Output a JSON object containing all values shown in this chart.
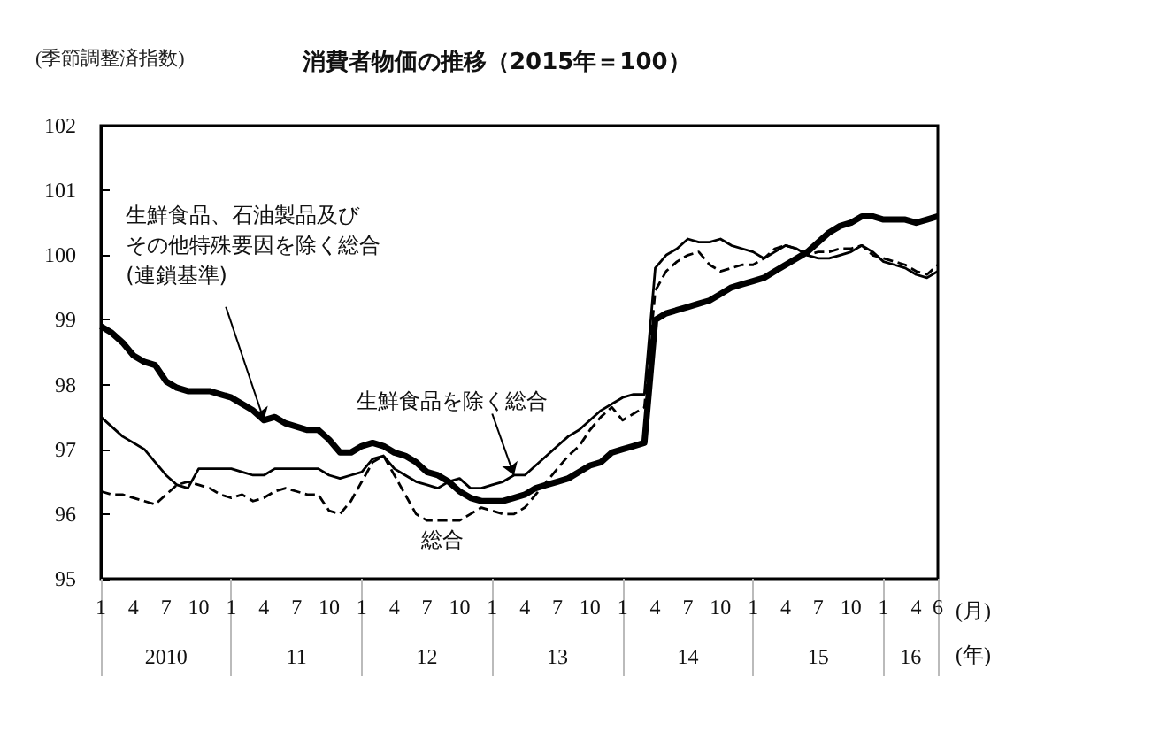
{
  "chart_data": {
    "type": "line",
    "title": "消費者物価の推移（2015年＝100）",
    "ylabel": "(季節調整済指数)",
    "xlabel": "(月)",
    "x": [
      "2010-01",
      "2010-02",
      "2010-03",
      "2010-04",
      "2010-05",
      "2010-06",
      "2010-07",
      "2010-08",
      "2010-09",
      "2010-10",
      "2010-11",
      "2010-12",
      "2011-01",
      "2011-02",
      "2011-03",
      "2011-04",
      "2011-05",
      "2011-06",
      "2011-07",
      "2011-08",
      "2011-09",
      "2011-10",
      "2011-11",
      "2011-12",
      "2012-01",
      "2012-02",
      "2012-03",
      "2012-04",
      "2012-05",
      "2012-06",
      "2012-07",
      "2012-08",
      "2012-09",
      "2012-10",
      "2012-11",
      "2012-12",
      "2013-01",
      "2013-02",
      "2013-03",
      "2013-04",
      "2013-05",
      "2013-06",
      "2013-07",
      "2013-08",
      "2013-09",
      "2013-10",
      "2013-11",
      "2013-12",
      "2014-01",
      "2014-02",
      "2014-03",
      "2014-04",
      "2014-05",
      "2014-06",
      "2014-07",
      "2014-08",
      "2014-09",
      "2014-10",
      "2014-11",
      "2014-12",
      "2015-01",
      "2015-02",
      "2015-03",
      "2015-04",
      "2015-05",
      "2015-06",
      "2015-07",
      "2015-08",
      "2015-09",
      "2015-10",
      "2015-11",
      "2015-12",
      "2016-01",
      "2016-02",
      "2016-03",
      "2016-04",
      "2016-05",
      "2016-06"
    ],
    "series": [
      {
        "name": "生鮮食品、石油製品及びその他特殊要因を除く総合(連鎖基準)",
        "color": "#000000",
        "line_style": "solid",
        "values": [
          98.9,
          98.8,
          98.65,
          98.45,
          98.35,
          98.3,
          98.05,
          97.95,
          97.9,
          97.9,
          97.9,
          97.85,
          97.8,
          97.7,
          97.6,
          97.45,
          97.5,
          97.4,
          97.35,
          97.3,
          97.3,
          97.15,
          96.95,
          96.95,
          97.05,
          97.1,
          97.05,
          96.95,
          96.9,
          96.8,
          96.65,
          96.6,
          96.5,
          96.35,
          96.25,
          96.2,
          96.2,
          96.2,
          96.25,
          96.3,
          96.4,
          96.45,
          96.5,
          96.55,
          96.65,
          96.75,
          96.8,
          96.95,
          97.0,
          97.05,
          97.1,
          99.0,
          99.1,
          99.15,
          99.2,
          99.25,
          99.3,
          99.4,
          99.5,
          99.55,
          99.6,
          99.65,
          99.75,
          99.85,
          99.95,
          100.05,
          100.2,
          100.35,
          100.45,
          100.5,
          100.6,
          100.6,
          100.55,
          100.55,
          100.55,
          100.5,
          100.55,
          100.6
        ]
      },
      {
        "name": "生鮮食品を除く総合",
        "color": "#000000",
        "line_style": "solid",
        "values": [
          97.5,
          97.35,
          97.2,
          97.1,
          97.0,
          96.8,
          96.6,
          96.45,
          96.4,
          96.7,
          96.7,
          96.7,
          96.7,
          96.65,
          96.6,
          96.6,
          96.7,
          96.7,
          96.7,
          96.7,
          96.7,
          96.6,
          96.55,
          96.6,
          96.65,
          96.85,
          96.9,
          96.7,
          96.6,
          96.5,
          96.45,
          96.4,
          96.5,
          96.55,
          96.4,
          96.4,
          96.45,
          96.5,
          96.6,
          96.6,
          96.75,
          96.9,
          97.05,
          97.2,
          97.3,
          97.45,
          97.6,
          97.7,
          97.8,
          97.85,
          97.85,
          99.8,
          100.0,
          100.1,
          100.25,
          100.2,
          100.2,
          100.25,
          100.15,
          100.1,
          100.05,
          99.95,
          100.05,
          100.15,
          100.1,
          100.0,
          99.95,
          99.95,
          100.0,
          100.05,
          100.15,
          100.05,
          99.9,
          99.85,
          99.8,
          99.7,
          99.65,
          99.75
        ]
      },
      {
        "name": "総合",
        "color": "#000000",
        "line_style": "dashed",
        "values": [
          96.35,
          96.3,
          96.3,
          96.25,
          96.2,
          96.15,
          96.3,
          96.45,
          96.5,
          96.45,
          96.4,
          96.3,
          96.25,
          96.3,
          96.2,
          96.25,
          96.35,
          96.4,
          96.35,
          96.3,
          96.3,
          96.05,
          96.0,
          96.2,
          96.5,
          96.8,
          96.9,
          96.6,
          96.3,
          96.0,
          95.9,
          95.9,
          95.9,
          95.9,
          96.0,
          96.1,
          96.05,
          96.0,
          96.0,
          96.1,
          96.3,
          96.5,
          96.7,
          96.9,
          97.05,
          97.3,
          97.5,
          97.65,
          97.45,
          97.55,
          97.65,
          99.45,
          99.75,
          99.9,
          100.0,
          100.05,
          99.85,
          99.75,
          99.8,
          99.85,
          99.85,
          99.95,
          100.1,
          100.15,
          100.1,
          100.0,
          100.05,
          100.05,
          100.1,
          100.1,
          100.15,
          100.0,
          99.95,
          99.9,
          99.85,
          99.75,
          99.7,
          99.85
        ]
      }
    ],
    "xlim": [
      "2010-01",
      "2016-06"
    ],
    "xticks": [
      {
        "value": "2010-01",
        "label": "1"
      },
      {
        "value": "2010-04",
        "label": "4"
      },
      {
        "value": "2010-07",
        "label": "7"
      },
      {
        "value": "2010-10",
        "label": "10"
      },
      {
        "value": "2011-01",
        "label": "1"
      },
      {
        "value": "2011-04",
        "label": "4"
      },
      {
        "value": "2011-07",
        "label": "7"
      },
      {
        "value": "2011-10",
        "label": "10"
      },
      {
        "value": "2012-01",
        "label": "1"
      },
      {
        "value": "2012-04",
        "label": "4"
      },
      {
        "value": "2012-07",
        "label": "7"
      },
      {
        "value": "2012-10",
        "label": "10"
      },
      {
        "value": "2013-01",
        "label": "1"
      },
      {
        "value": "2013-04",
        "label": "4"
      },
      {
        "value": "2013-07",
        "label": "7"
      },
      {
        "value": "2013-10",
        "label": "10"
      },
      {
        "value": "2014-01",
        "label": "1"
      },
      {
        "value": "2014-04",
        "label": "4"
      },
      {
        "value": "2014-07",
        "label": "7"
      },
      {
        "value": "2014-10",
        "label": "10"
      },
      {
        "value": "2015-01",
        "label": "1"
      },
      {
        "value": "2015-04",
        "label": "4"
      },
      {
        "value": "2015-07",
        "label": "7"
      },
      {
        "value": "2015-10",
        "label": "10"
      },
      {
        "value": "2016-01",
        "label": "1"
      },
      {
        "value": "2016-04",
        "label": "4"
      },
      {
        "value": "2016-06",
        "label": "6"
      }
    ],
    "ylim": [
      95,
      102
    ],
    "yticks": [
      95,
      96,
      97,
      98,
      99,
      100,
      101,
      102
    ],
    "annotations": [
      "2010",
      "11",
      "12",
      "13",
      "14",
      "15",
      "16",
      "(年)"
    ],
    "grid": false,
    "legend": false,
    "marker": "none"
  }
}
